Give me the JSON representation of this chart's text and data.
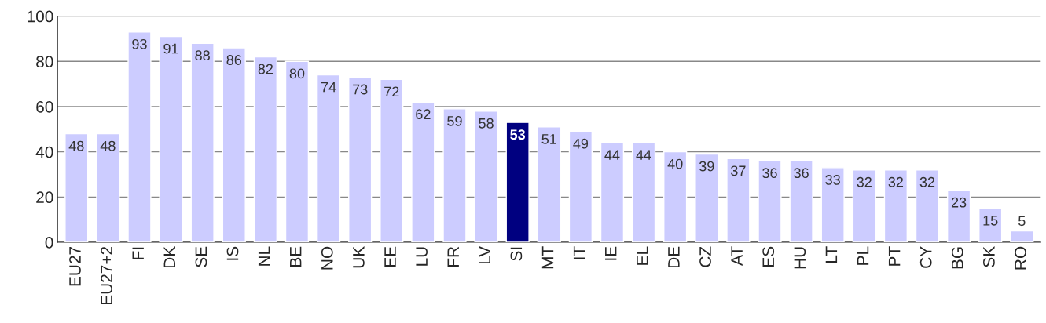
{
  "chart_data": {
    "type": "bar",
    "categories": [
      "EU27",
      "EU27+2",
      "FI",
      "DK",
      "SE",
      "IS",
      "NL",
      "BE",
      "NO",
      "UK",
      "EE",
      "LU",
      "FR",
      "LV",
      "SI",
      "MT",
      "IT",
      "IE",
      "EL",
      "DE",
      "CZ",
      "AT",
      "ES",
      "HU",
      "LT",
      "PL",
      "PT",
      "CY",
      "BG",
      "SK",
      "RO"
    ],
    "values": [
      48,
      48,
      93,
      91,
      88,
      86,
      82,
      80,
      74,
      73,
      72,
      62,
      59,
      58,
      53,
      51,
      49,
      44,
      44,
      40,
      39,
      37,
      36,
      36,
      33,
      32,
      32,
      32,
      23,
      15,
      5
    ],
    "colors": [
      "#ccccff",
      "#ccccff",
      "#ccccff",
      "#ccccff",
      "#ccccff",
      "#ccccff",
      "#ccccff",
      "#ccccff",
      "#ccccff",
      "#ccccff",
      "#ccccff",
      "#ccccff",
      "#ccccff",
      "#ccccff",
      "#000080",
      "#ccccff",
      "#ccccff",
      "#ccccff",
      "#ccccff",
      "#ccccff",
      "#ccccff",
      "#ccccff",
      "#ccccff",
      "#ccccff",
      "#ccccff",
      "#ccccff",
      "#ccccff",
      "#ccccff",
      "#ccccff",
      "#ccccff",
      "#ccccff"
    ],
    "ylim": [
      0,
      100
    ],
    "yticks": [
      0,
      20,
      40,
      60,
      80,
      100
    ],
    "grid": "y",
    "data_labels": true,
    "legend": false
  }
}
